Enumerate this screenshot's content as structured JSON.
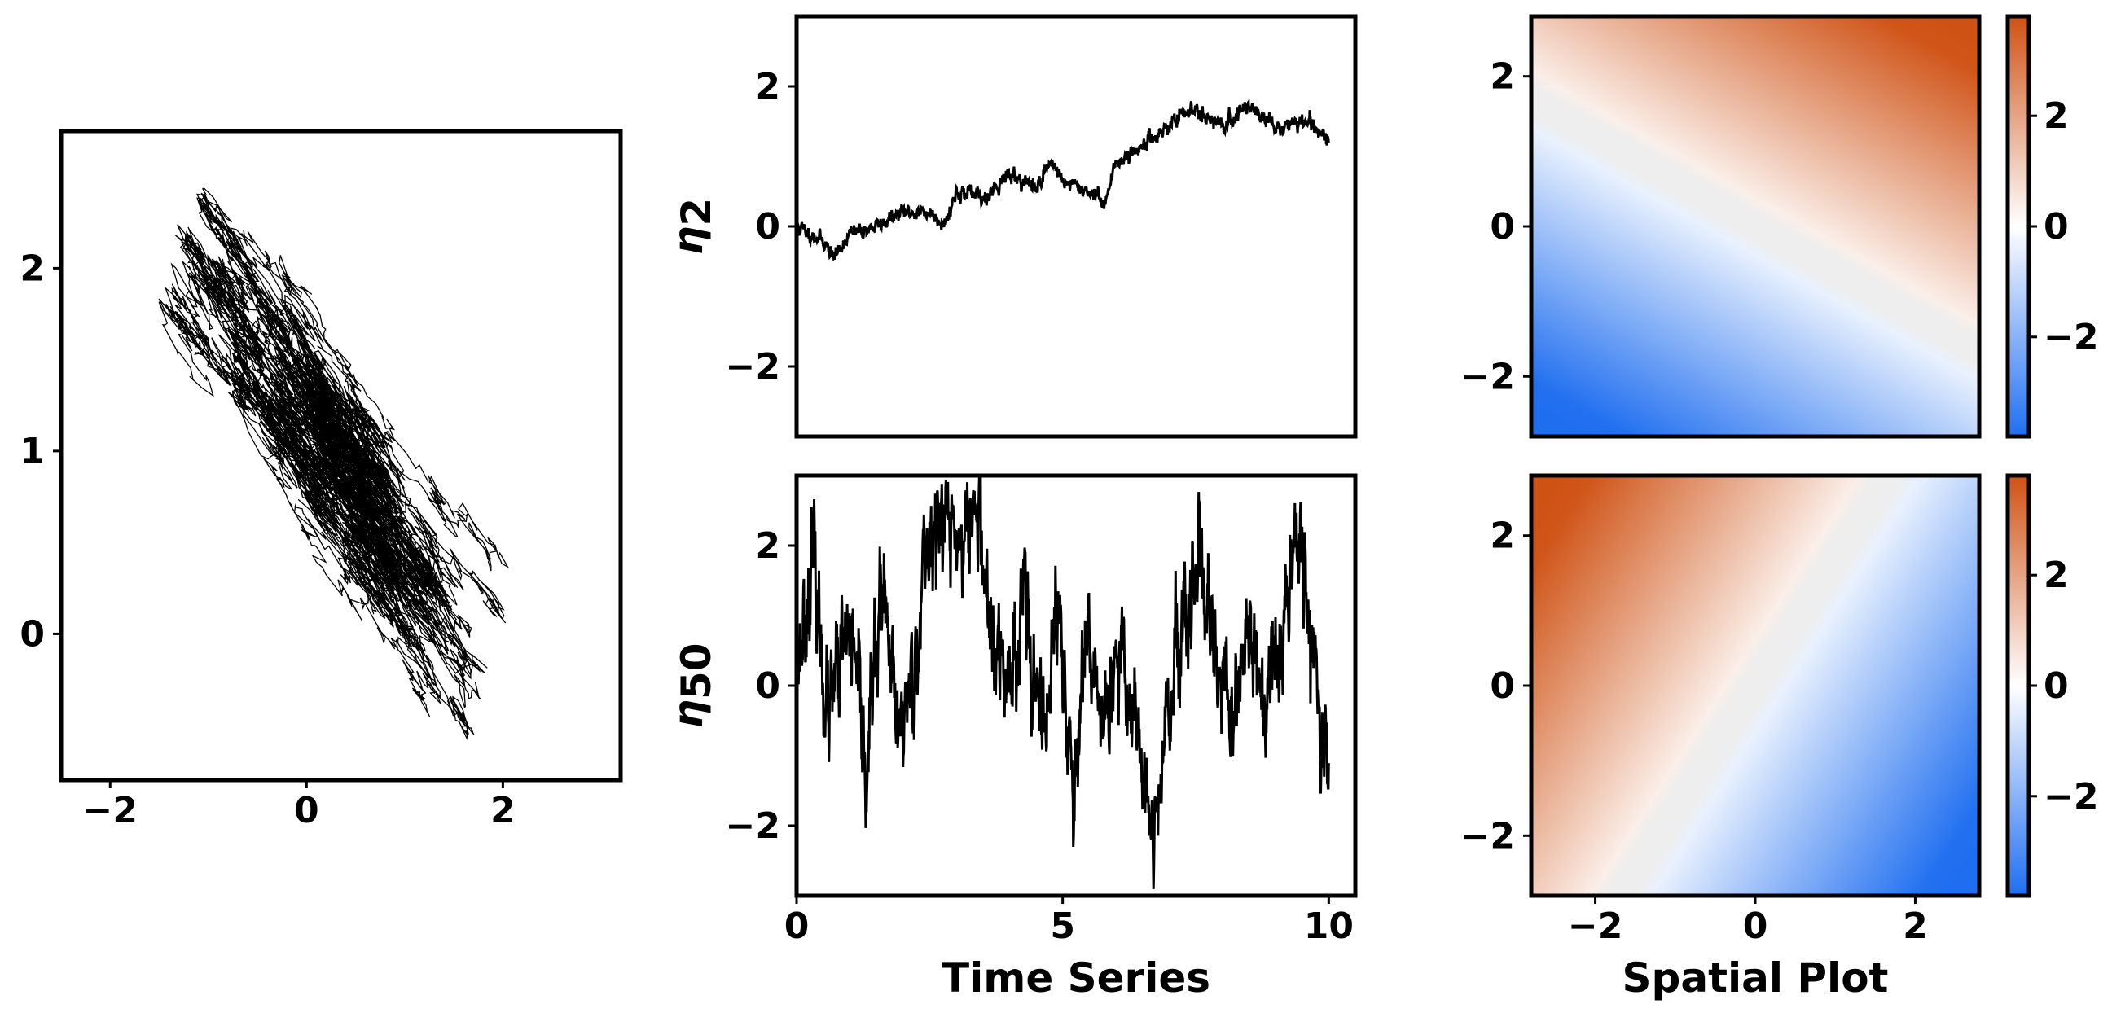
{
  "chart_data": [
    {
      "type": "line",
      "subtype": "phase-portrait",
      "title": "",
      "xlabel": "",
      "ylabel": "",
      "xlim": [
        -2.5,
        3.2
      ],
      "ylim": [
        -0.8,
        2.75
      ],
      "xticks": [
        -2,
        0,
        2
      ],
      "yticks": [
        0,
        1,
        2
      ],
      "xtick_labels": [
        "−2",
        "0",
        "2"
      ],
      "ytick_labels": [
        "0",
        "1",
        "2"
      ],
      "color": "#000000",
      "grid": false,
      "trajectory": {
        "x_range": [
          -2.3,
          3.0
        ],
        "y_range": [
          -0.65,
          2.6
        ],
        "orientation": "diagonal bands running from upper-left to lower-right"
      }
    },
    {
      "type": "line",
      "title": "",
      "ylabel": "η",
      "ylabel_sub": "2",
      "xlim": [
        0,
        10.5
      ],
      "ylim": [
        -3,
        3
      ],
      "yticks": [
        -2,
        0,
        2
      ],
      "ytick_labels": [
        "−2",
        "0",
        "2"
      ],
      "color": "#000000",
      "grid": false,
      "x": [
        0,
        0.5,
        0.7,
        1,
        1.5,
        2,
        2.5,
        2.8,
        3,
        3.5,
        4,
        4.5,
        4.8,
        5,
        5.5,
        5.8,
        6,
        6.5,
        7,
        7.5,
        8,
        8.5,
        9,
        9.5,
        10
      ],
      "values": [
        0,
        -0.2,
        -0.45,
        -0.1,
        0,
        0.2,
        0.2,
        0.05,
        0.5,
        0.4,
        0.75,
        0.55,
        0.95,
        0.65,
        0.5,
        0.35,
        0.9,
        1.15,
        1.45,
        1.7,
        1.4,
        1.75,
        1.4,
        1.5,
        1.25
      ]
    },
    {
      "type": "line",
      "title": "",
      "xlabel": "Time Series",
      "ylabel": "η",
      "ylabel_sub": "50",
      "xlim": [
        0,
        10.5
      ],
      "ylim": [
        -3,
        3
      ],
      "xticks": [
        0,
        5,
        10
      ],
      "xtick_labels": [
        "0",
        "5",
        "10"
      ],
      "yticks": [
        -2,
        0,
        2
      ],
      "ytick_labels": [
        "−2",
        "0",
        "2"
      ],
      "color": "#000000",
      "grid": false,
      "x": [
        0,
        0.3,
        0.6,
        1,
        1.3,
        1.6,
        1.9,
        2.2,
        2.5,
        2.8,
        3.1,
        3.4,
        3.7,
        4,
        4.3,
        4.6,
        4.9,
        5.2,
        5.5,
        5.8,
        6.1,
        6.4,
        6.7,
        7,
        7.3,
        7.6,
        7.9,
        8.2,
        8.5,
        8.8,
        9.1,
        9.4,
        9.7,
        10
      ],
      "values": [
        0.2,
        1.8,
        -0.5,
        0.8,
        -1.2,
        1.4,
        -0.8,
        0.3,
        2.2,
        2.4,
        2.0,
        2.6,
        0.4,
        0.1,
        1.5,
        -1.0,
        1.2,
        -1.6,
        0.6,
        -0.6,
        0.3,
        -0.4,
        -2.4,
        -0.3,
        0.8,
        1.4,
        0.2,
        -0.6,
        1.0,
        -0.5,
        0.5,
        2.7,
        0.4,
        -1.0
      ]
    },
    {
      "type": "heatmap",
      "title": "",
      "xlabel": "",
      "xlim": [
        -2.8,
        2.8
      ],
      "ylim": [
        -2.8,
        2.8
      ],
      "yticks": [
        -2,
        0,
        2
      ],
      "ytick_labels": [
        "−2",
        "0",
        "2"
      ],
      "function": "z = 0.6*x + 1.0*y",
      "colormap": [
        "#1f6ef0",
        "#ffffff",
        "#cf5215"
      ],
      "zero_band_color": "#eeeeee",
      "colorbar": {
        "range": [
          -3.8,
          3.8
        ],
        "ticks": [
          2,
          0,
          -2
        ],
        "tick_labels": [
          "2",
          "0",
          "−2"
        ]
      }
    },
    {
      "type": "heatmap",
      "title": "",
      "xlabel": "Spatial Plot",
      "xlim": [
        -2.8,
        2.8
      ],
      "ylim": [
        -2.8,
        2.8
      ],
      "xticks": [
        -2,
        0,
        2
      ],
      "xtick_labels": [
        "−2",
        "0",
        "2"
      ],
      "yticks": [
        -2,
        0,
        2
      ],
      "ytick_labels": [
        "−2",
        "0",
        "2"
      ],
      "function": "z = -1.0*x + 0.6*y",
      "colormap": [
        "#1f6ef0",
        "#ffffff",
        "#cf5215"
      ],
      "zero_band_color": "#eeeeee",
      "colorbar": {
        "range": [
          -3.8,
          3.8
        ],
        "ticks": [
          2,
          0,
          -2
        ],
        "tick_labels": [
          "2",
          "0",
          "−2"
        ]
      }
    }
  ]
}
